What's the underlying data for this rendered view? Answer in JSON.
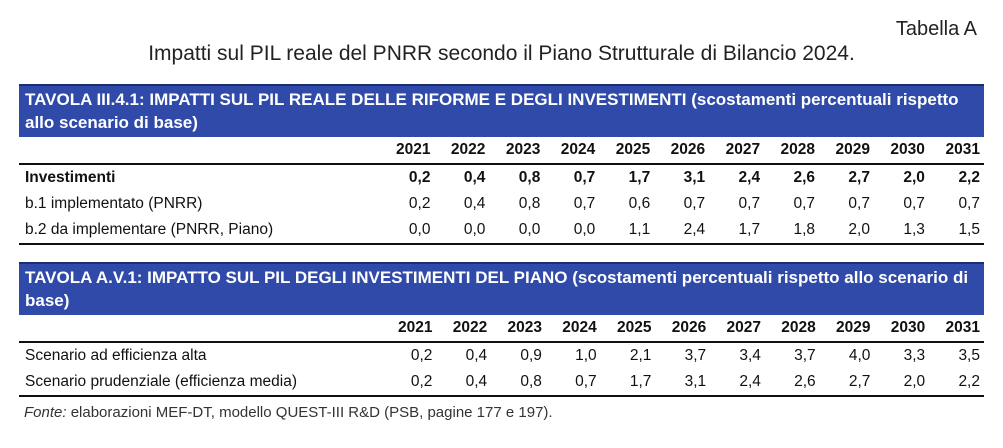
{
  "page": {
    "tag": "Tabella A",
    "subtitle": "Impatti sul PIL reale del PNRR secondo il Piano Strutturale di Bilancio 2024."
  },
  "years": [
    "2021",
    "2022",
    "2023",
    "2024",
    "2025",
    "2026",
    "2027",
    "2028",
    "2029",
    "2030",
    "2031"
  ],
  "table1": {
    "title_bold": "TAVOLA III.4.1: IMPATTI SUL PIL REALE DELLE RIFORME E DEGLI INVESTIMENTI",
    "title_rest": "(scostamenti percentuali rispetto allo scenario di base)",
    "rows": [
      {
        "label": "Investimenti",
        "bold": true,
        "values": [
          "0,2",
          "0,4",
          "0,8",
          "0,7",
          "1,7",
          "3,1",
          "2,4",
          "2,6",
          "2,7",
          "2,0",
          "2,2"
        ]
      },
      {
        "label": "b.1 implementato (PNRR)",
        "bold": false,
        "values": [
          "0,2",
          "0,4",
          "0,8",
          "0,7",
          "0,6",
          "0,7",
          "0,7",
          "0,7",
          "0,7",
          "0,7",
          "0,7"
        ]
      },
      {
        "label": "b.2 da implementare (PNRR, Piano)",
        "bold": false,
        "values": [
          "0,0",
          "0,0",
          "0,0",
          "0,0",
          "1,1",
          "2,4",
          "1,7",
          "1,8",
          "2,0",
          "1,3",
          "1,5"
        ]
      }
    ]
  },
  "table2": {
    "title_bold": "TAVOLA A.V.1: IMPATTO SUL PIL DEGLI INVESTIMENTI DEL PIANO",
    "title_rest": "(scostamenti percentuali rispetto allo scenario di base)",
    "rows": [
      {
        "label": "Scenario ad efficienza alta",
        "bold": false,
        "values": [
          "0,2",
          "0,4",
          "0,9",
          "1,0",
          "2,1",
          "3,7",
          "3,4",
          "3,7",
          "4,0",
          "3,3",
          "3,5"
        ]
      },
      {
        "label": "Scenario prudenziale (efficienza media)",
        "bold": false,
        "values": [
          "0,2",
          "0,4",
          "0,8",
          "0,7",
          "1,7",
          "3,1",
          "2,4",
          "2,6",
          "2,7",
          "2,0",
          "2,2"
        ]
      }
    ]
  },
  "source": {
    "lead": "Fonte:",
    "text": " elaborazioni MEF-DT, modello QUEST-III R&D (PSB, pagine 177 e 197)."
  }
}
